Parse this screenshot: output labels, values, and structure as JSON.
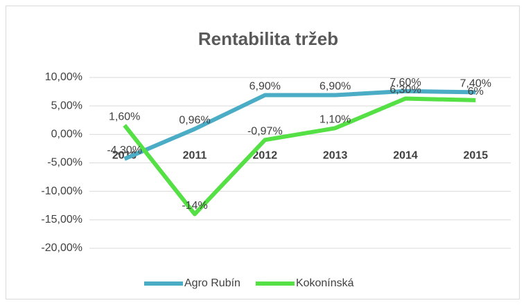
{
  "chart_data": {
    "type": "line",
    "title": "Rentabilita tržeb",
    "categories": [
      "2010",
      "2011",
      "2012",
      "2013",
      "2014",
      "2015"
    ],
    "series": [
      {
        "name": "Agro Rubín",
        "color": "#4bacc6",
        "values": [
          -4.3,
          0.96,
          6.9,
          6.9,
          7.6,
          7.4
        ],
        "value_labels": [
          "-4,30%",
          "0,96%",
          "6,90%",
          "6,90%",
          "7,60%",
          "7,40%"
        ]
      },
      {
        "name": "Kokonínská",
        "color": "#55e045",
        "values": [
          1.6,
          -14,
          -0.97,
          1.1,
          6.3,
          6
        ],
        "value_labels": [
          "1,60%",
          "-14%",
          "-0,97%",
          "1,10%",
          "6,30%",
          "6%"
        ]
      }
    ],
    "ylim": [
      -20,
      10
    ],
    "yticks": [
      {
        "value": 10,
        "label": "10,00%"
      },
      {
        "value": 5,
        "label": "5,00%"
      },
      {
        "value": 0,
        "label": "0,00%"
      },
      {
        "value": -5,
        "label": "-5,00%"
      },
      {
        "value": -10,
        "label": "-10,00%"
      },
      {
        "value": -15,
        "label": "-15,00%"
      },
      {
        "value": -20,
        "label": "-20,00%"
      }
    ],
    "grid": true,
    "legend": "bottom"
  }
}
